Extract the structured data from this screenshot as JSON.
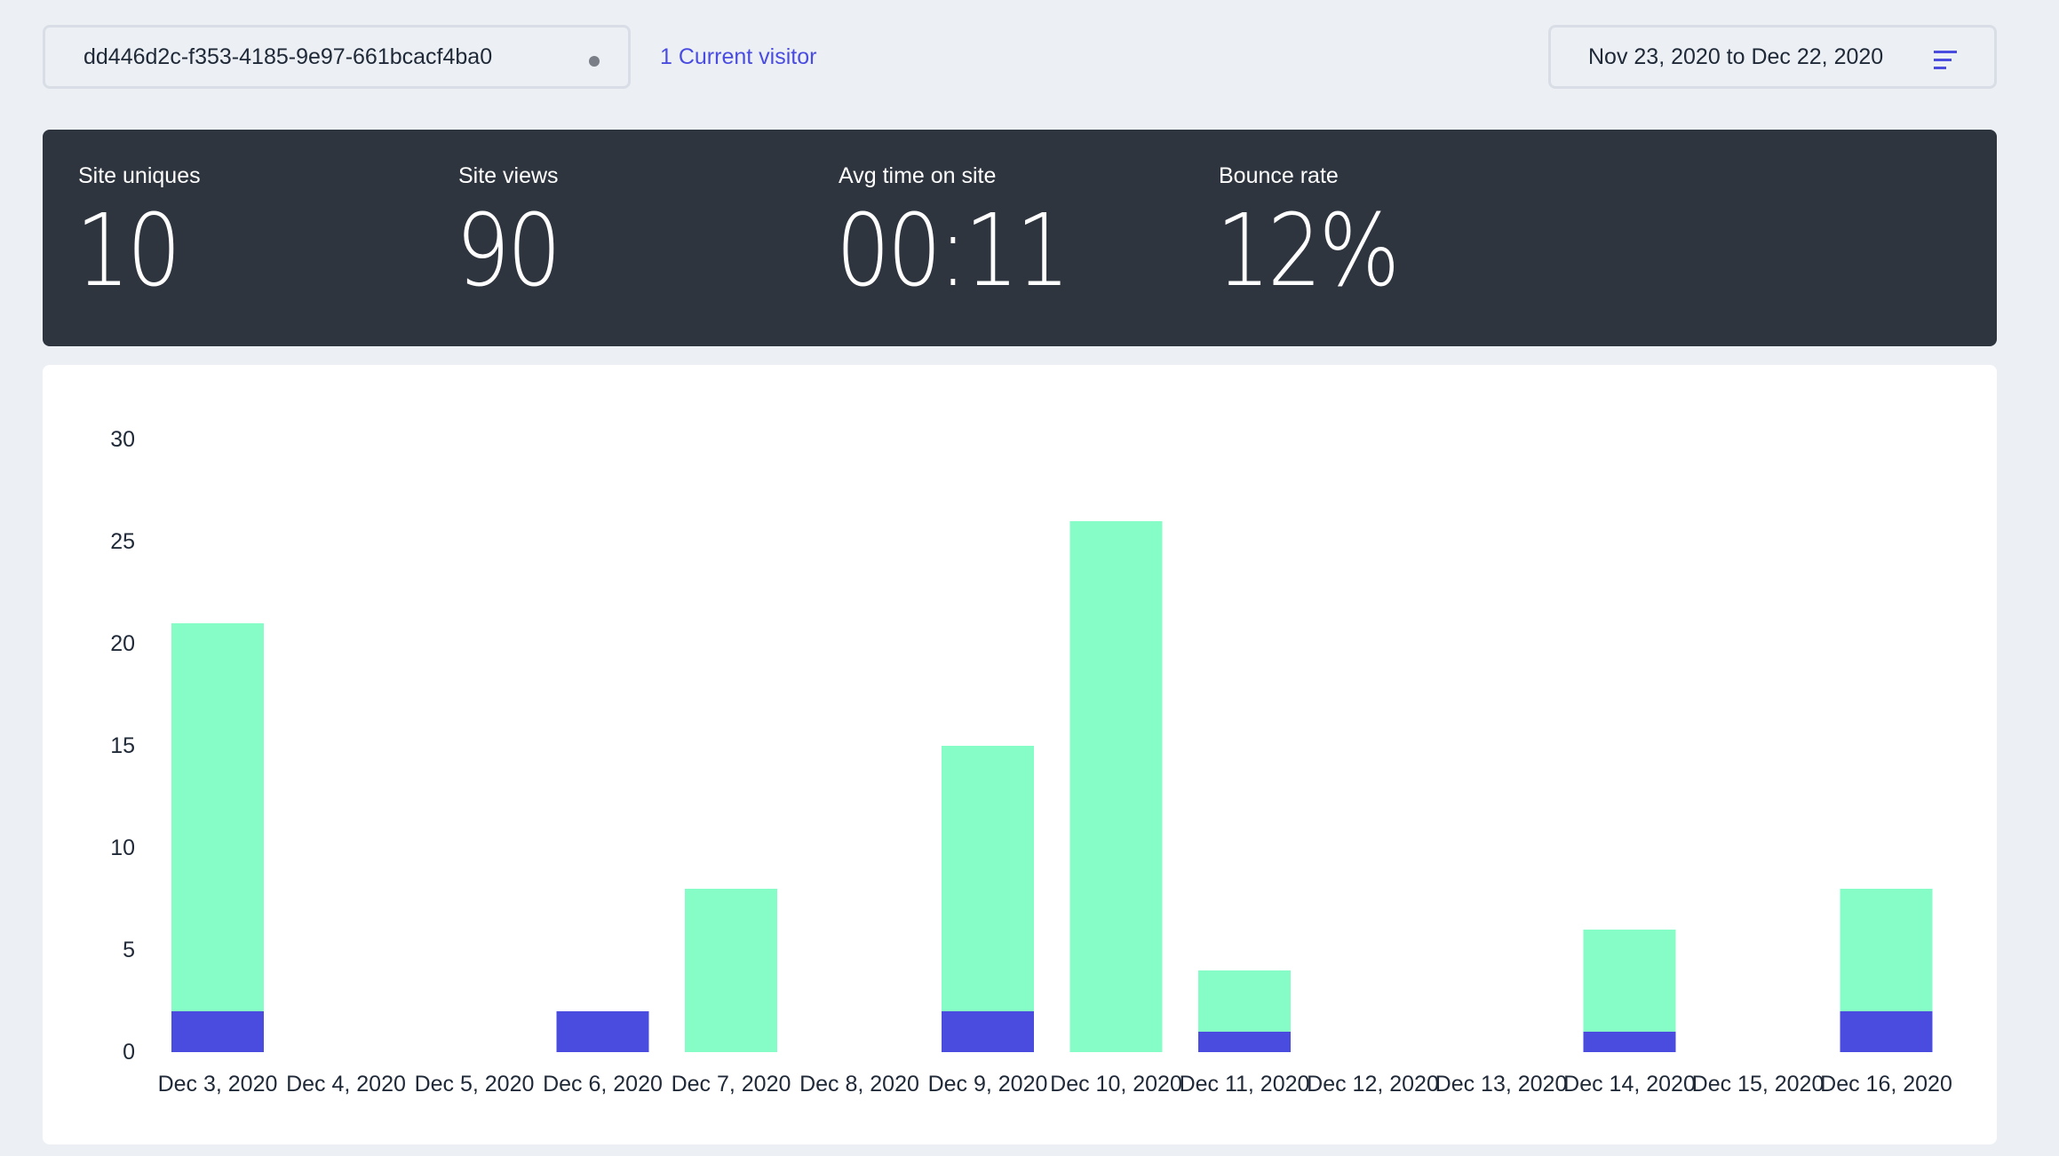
{
  "header": {
    "site_id": "dd446d2c-f353-4185-9e97-661bcacf4ba0",
    "visitors_label": "1 Current visitor",
    "date_range": "Nov 23, 2020 to Dec 22, 2020",
    "icons": [
      "status-dot-icon",
      "menu-lines-icon"
    ]
  },
  "stats": [
    {
      "label": "Site uniques",
      "value": "10"
    },
    {
      "label": "Site views",
      "value": "90"
    },
    {
      "label": "Avg time on site",
      "value": "00:11"
    },
    {
      "label": "Bounce rate",
      "value": "12%"
    }
  ],
  "colors": {
    "background": "#ecf0f5",
    "stats_panel": "#2e353f",
    "accent": "#4a4ce0",
    "series_uniques": "#4a4ce0",
    "series_views": "#86fdc7"
  },
  "chart_data": {
    "type": "bar",
    "stacked": true,
    "categories": [
      "Dec 3, 2020",
      "Dec 4, 2020",
      "Dec 5, 2020",
      "Dec 6, 2020",
      "Dec 7, 2020",
      "Dec 8, 2020",
      "Dec 9, 2020",
      "Dec 10, 2020",
      "Dec 11, 2020",
      "Dec 12, 2020",
      "Dec 13, 2020",
      "Dec 14, 2020",
      "Dec 15, 2020",
      "Dec 16, 2020"
    ],
    "series": [
      {
        "values": [
          2,
          0,
          0,
          2,
          0,
          0,
          2,
          0,
          1,
          0,
          0,
          1,
          0,
          2
        ]
      },
      {
        "values": [
          19,
          0,
          0,
          0,
          8,
          0,
          13,
          26,
          3,
          0,
          0,
          5,
          0,
          6
        ]
      }
    ],
    "yticks": [
      0,
      5,
      10,
      15,
      20,
      25,
      30
    ],
    "ylim": [
      0,
      30
    ],
    "title": "",
    "xlabel": "",
    "ylabel": "",
    "grid": false,
    "legend": "none"
  }
}
